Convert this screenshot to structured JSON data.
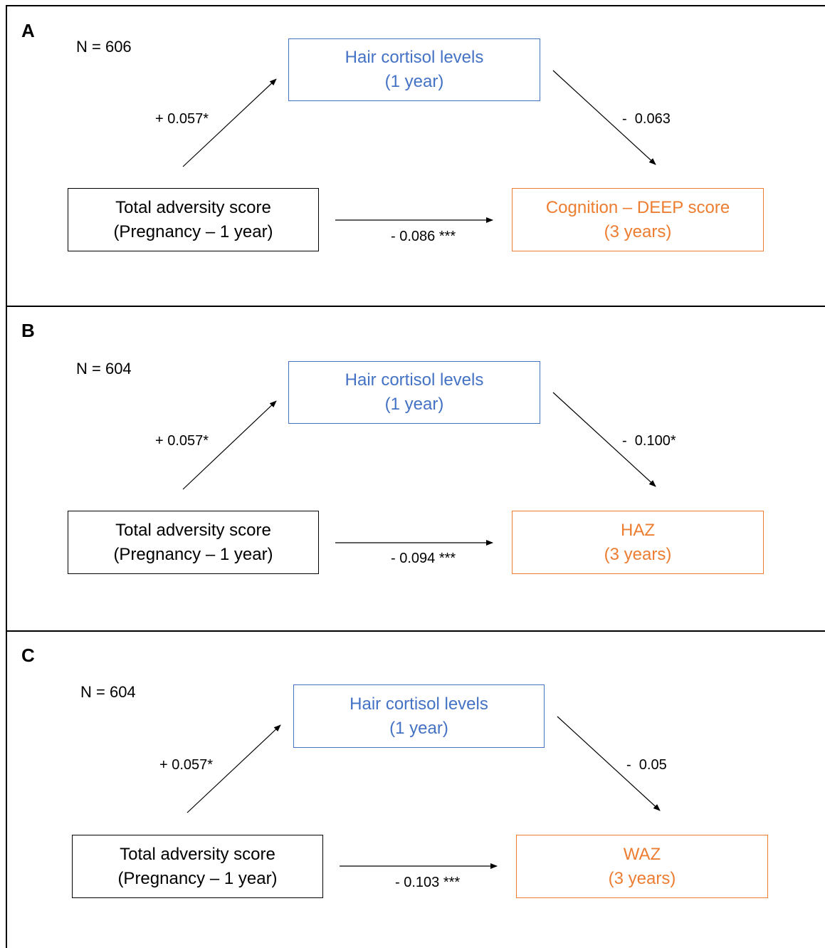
{
  "panels": [
    {
      "letter": "A",
      "n": "N = 606",
      "mediator": {
        "line1": "Hair cortisol levels",
        "line2": "(1 year)"
      },
      "exposure": {
        "line1": "Total adversity score",
        "line2": "(Pregnancy – 1 year)"
      },
      "outcome": {
        "line1": "Cognition – DEEP score",
        "line2": "(3 years)"
      },
      "coef_a": "+ 0.057*",
      "coef_b": "-  0.063",
      "coef_c": "- 0.086 ***"
    },
    {
      "letter": "B",
      "n": "N = 604",
      "mediator": {
        "line1": "Hair cortisol levels",
        "line2": "(1 year)"
      },
      "exposure": {
        "line1": "Total adversity score",
        "line2": "(Pregnancy – 1 year)"
      },
      "outcome": {
        "line1": "HAZ",
        "line2": "(3 years)"
      },
      "coef_a": "+ 0.057*",
      "coef_b": "-  0.100*",
      "coef_c": "- 0.094 ***"
    },
    {
      "letter": "C",
      "n": "N = 604",
      "mediator": {
        "line1": "Hair cortisol levels",
        "line2": "(1 year)"
      },
      "exposure": {
        "line1": "Total adversity score",
        "line2": "(Pregnancy – 1 year)"
      },
      "outcome": {
        "line1": "WAZ",
        "line2": "(3 years)"
      },
      "coef_a": "+ 0.057*",
      "coef_b": "-  0.05",
      "coef_c": "- 0.103 ***"
    }
  ],
  "colors": {
    "mediator": "#4472c4",
    "outcome": "#ed7d31",
    "exposure": "#000000"
  }
}
